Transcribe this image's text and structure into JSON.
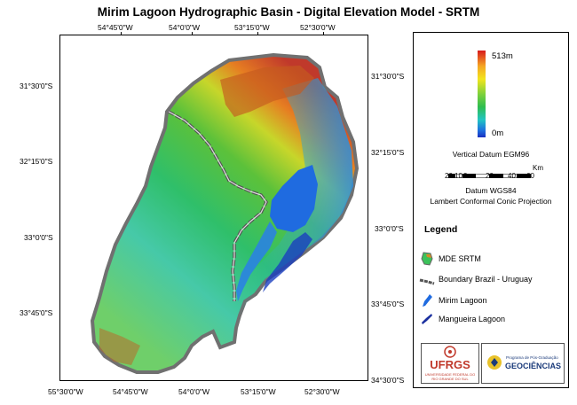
{
  "title": "Mirim Lagoon Hydrographic Basin - Digital Elevation Model - SRTM",
  "top_ticks": [
    "54°45'0\"W",
    "54°0'0\"W",
    "53°15'0\"W",
    "52°30'0\"W"
  ],
  "bottom_ticks": [
    "55°30'0\"W",
    "54°45'0\"W",
    "54°0'0\"W",
    "53°15'0\"W",
    "52°30'0\"W"
  ],
  "left_ticks": [
    "31°30'0\"S",
    "32°15'0\"S",
    "33°0'0\"S",
    "33°45'0\"S"
  ],
  "right_ticks": [
    "31°30'0\"S",
    "32°15'0\"S",
    "33°0'0\"S",
    "33°45'0\"S",
    "34°30'0\"S"
  ],
  "elevation": {
    "max_label": "513m",
    "min_label": "0m",
    "datum": "Vertical Datum EGM96",
    "colors": [
      "#d7191c",
      "#f5a623",
      "#f2e51d",
      "#7fd13b",
      "#2ebd4f",
      "#22c4c4",
      "#1e6fe0",
      "#1a2fbf"
    ]
  },
  "scale_bar": {
    "unit": "Km",
    "labels": [
      "20",
      "10",
      "0",
      "20",
      "40",
      "60"
    ]
  },
  "datum_text": "Datum WGS84",
  "projection_text": "Lambert Conformal Conic Projection",
  "legend": {
    "title": "Legend",
    "items": [
      {
        "label": "MDE SRTM",
        "icon": "dem-swatch-icon"
      },
      {
        "label": "Boundary Brazil - Uruguay",
        "icon": "boundary-line-icon"
      },
      {
        "label": "Mirim Lagoon",
        "icon": "mirim-lagoon-icon"
      },
      {
        "label": "Mangueira Lagoon",
        "icon": "mangueira-lagoon-icon"
      }
    ]
  },
  "logos": {
    "ufrgs": "UFRGS",
    "ufrgs_sub": "UNIVERSIDADE FEDERAL DO RIO GRANDE DO SUL",
    "geo_top": "Programa de Pós-Graduação",
    "geo_name": "GEOCIÊNCIAS"
  },
  "colors": {
    "lagoon": "#1f6be0",
    "basin_outline": "#707070",
    "boundary": "#555555"
  }
}
